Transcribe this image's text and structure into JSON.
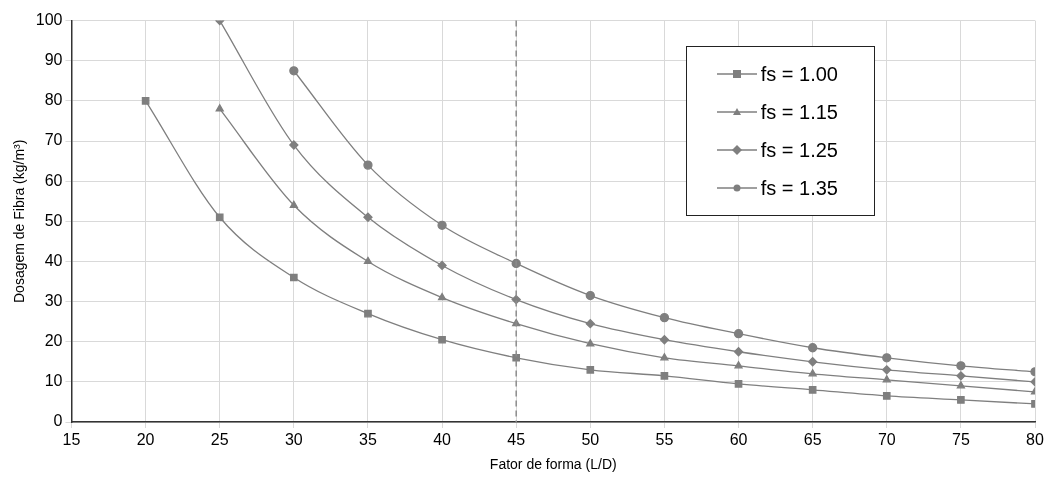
{
  "chart_data": {
    "type": "line",
    "xlabel": "Fator de forma (L/D)",
    "ylabel": "Dosagem de Fibra (kg/m³)",
    "xlim": [
      15,
      80
    ],
    "xticks": [
      15,
      20,
      25,
      30,
      35,
      40,
      45,
      50,
      55,
      60,
      65,
      70,
      75,
      80
    ],
    "ylim": [
      0,
      100
    ],
    "yticks": [
      0,
      10,
      20,
      30,
      40,
      50,
      60,
      70,
      80,
      90,
      100
    ],
    "grid": true,
    "legend": "top right",
    "ref_lines": [
      {
        "axis": "x",
        "value": 45,
        "color": "#8c8c8c",
        "line_style": "dashed"
      }
    ],
    "series": [
      {
        "name": "fs = 1.00",
        "color": "#7f7f7f",
        "marker": "square",
        "x": [
          20,
          25,
          30,
          35,
          40,
          45,
          50,
          55,
          60,
          65,
          70,
          75,
          80
        ],
        "values": [
          80,
          51,
          36,
          27,
          20.5,
          16,
          13,
          11.5,
          9.5,
          8,
          6.5,
          5.5,
          4.5
        ]
      },
      {
        "name": "fs = 1.15",
        "color": "#7f7f7f",
        "marker": "triangle",
        "x": [
          25,
          30,
          35,
          40,
          45,
          50,
          55,
          60,
          65,
          70,
          75,
          80
        ],
        "values": [
          78,
          54,
          40,
          31,
          24.5,
          19.5,
          16,
          14,
          12,
          10.5,
          9,
          7.5
        ]
      },
      {
        "name": "fs = 1.25",
        "color": "#7f7f7f",
        "marker": "diamond",
        "x": [
          25,
          30,
          35,
          40,
          45,
          50,
          55,
          60,
          65,
          70,
          75,
          80
        ],
        "values": [
          100,
          69,
          51,
          39,
          30.5,
          24.5,
          20.5,
          17.5,
          15,
          13,
          11.5,
          10
        ]
      },
      {
        "name": "fs = 1.35",
        "color": "#7f7f7f",
        "marker": "circle",
        "x": [
          30,
          35,
          40,
          45,
          50,
          55,
          60,
          65,
          70,
          75,
          80
        ],
        "values": [
          87.5,
          64,
          49,
          39.5,
          31.5,
          26,
          22,
          18.5,
          16,
          14,
          12.5
        ]
      }
    ]
  }
}
